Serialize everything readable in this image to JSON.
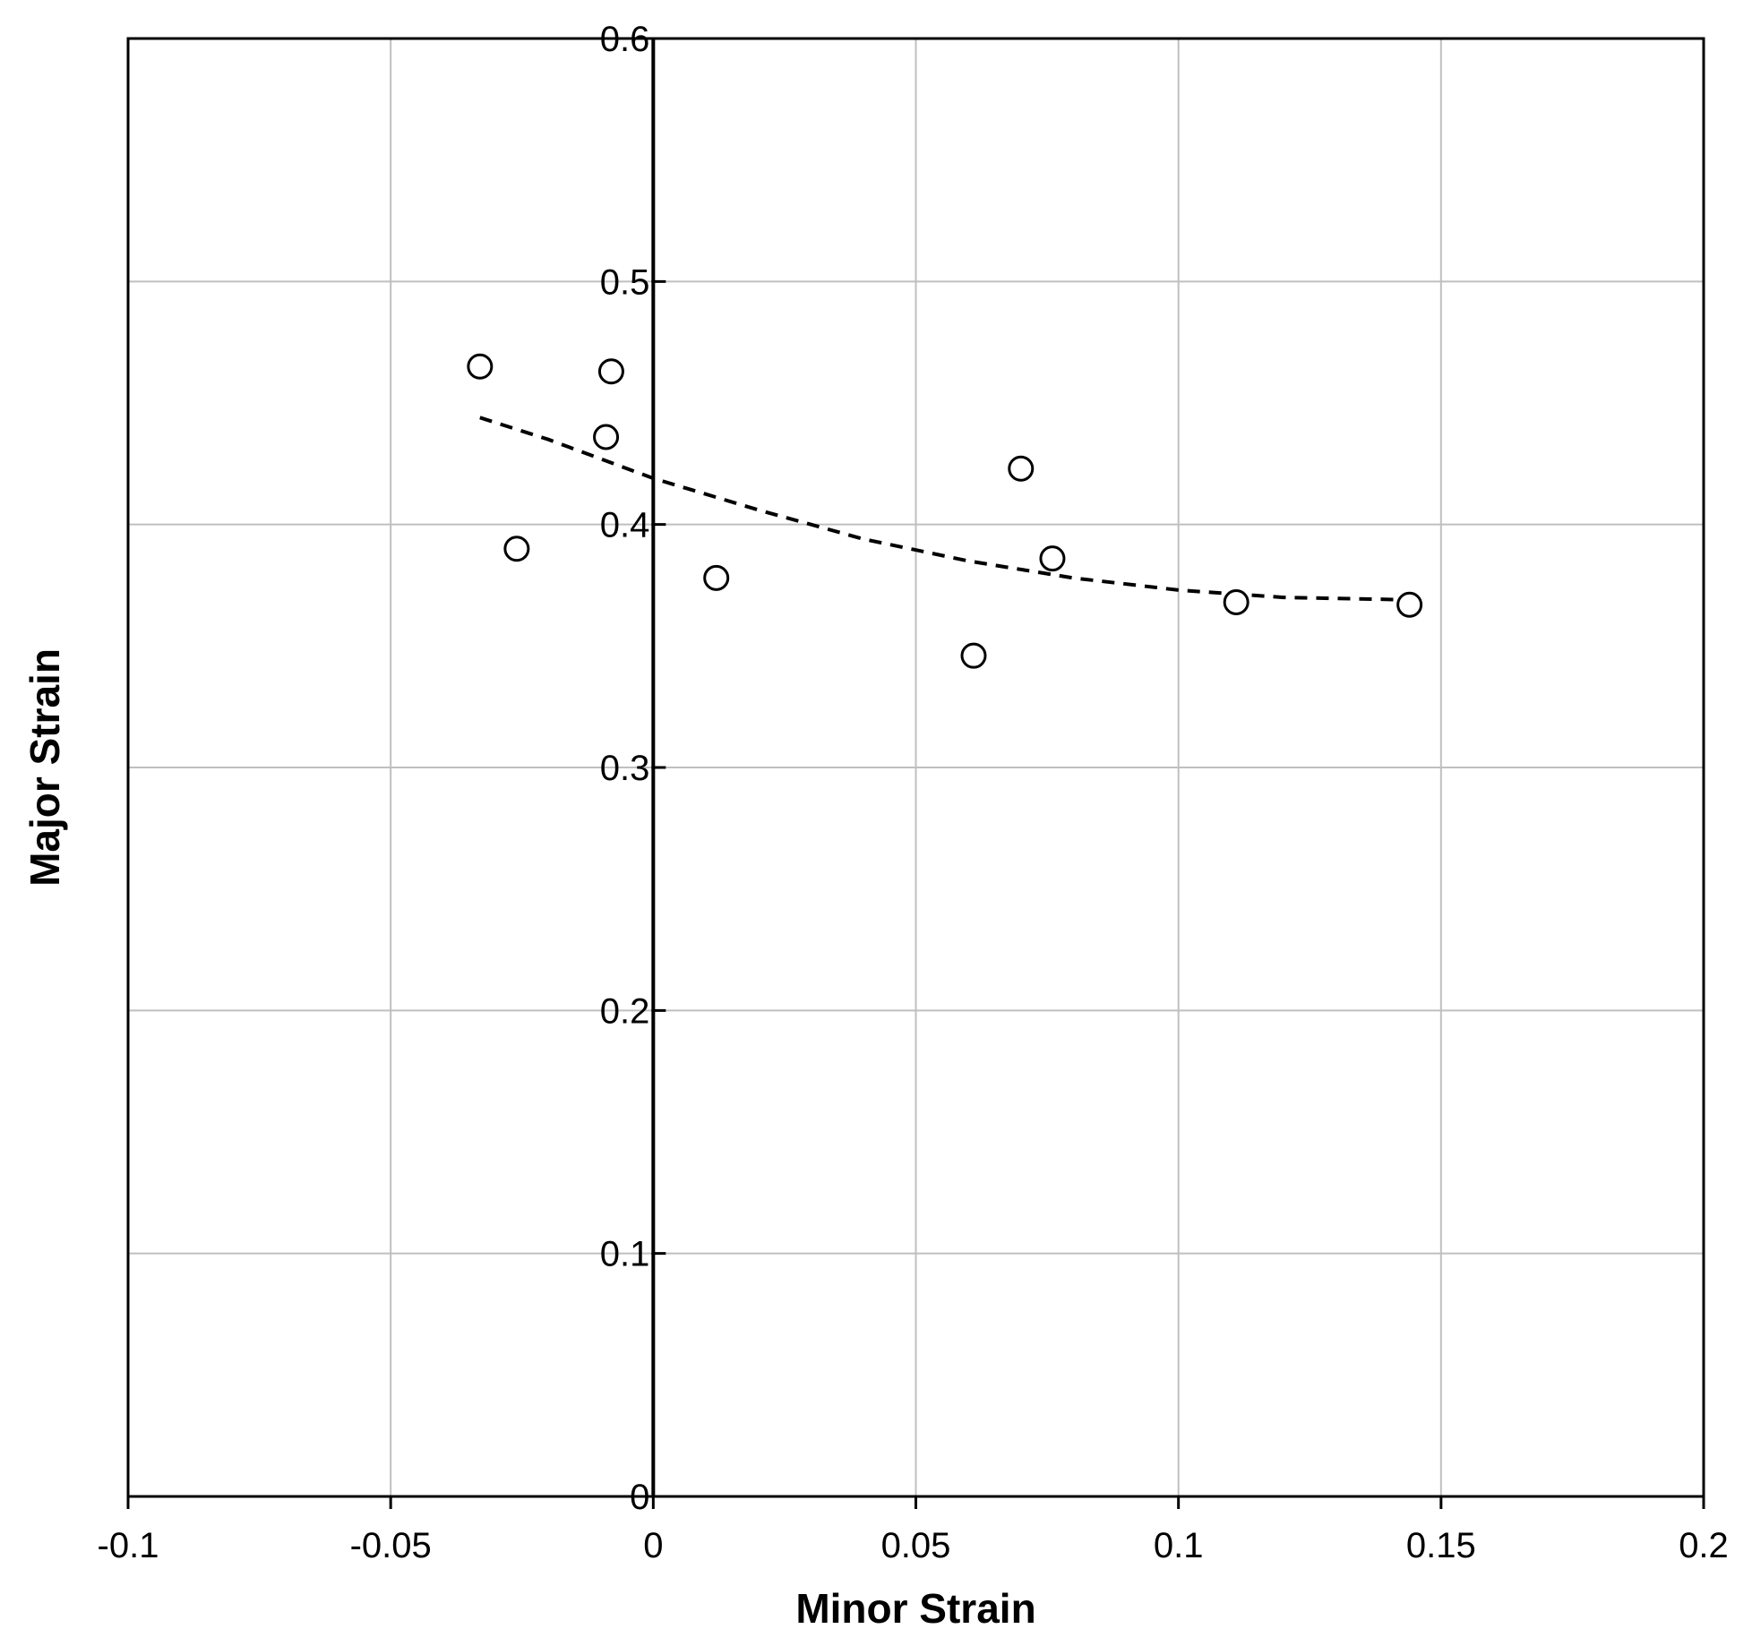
{
  "chart_data": {
    "type": "scatter",
    "title": "",
    "xlabel": "Minor Strain",
    "ylabel": "Major Strain",
    "xlim": [
      -0.1,
      0.2
    ],
    "ylim": [
      0,
      0.6
    ],
    "x_ticks": [
      -0.1,
      -0.05,
      0,
      0.05,
      0.1,
      0.15,
      0.2
    ],
    "x_tick_labels": [
      "-0.1",
      "-0.05",
      "0",
      "0.05",
      "0.1",
      "0.15",
      "0.2"
    ],
    "y_ticks": [
      0,
      0.1,
      0.2,
      0.3,
      0.4,
      0.5,
      0.6
    ],
    "y_tick_labels": [
      "0",
      "0.1",
      "0.2",
      "0.3",
      "0.4",
      "0.5",
      "0.6"
    ],
    "grid": true,
    "legend": "none",
    "series": [
      {
        "type": "scatter",
        "marker": "open-circle",
        "color": "#000000",
        "x": [
          -0.033,
          -0.026,
          -0.009,
          -0.008,
          0.012,
          0.061,
          0.07,
          0.076,
          0.111,
          0.144
        ],
        "y": [
          0.465,
          0.39,
          0.436,
          0.463,
          0.378,
          0.346,
          0.423,
          0.386,
          0.368,
          0.367
        ]
      },
      {
        "type": "line",
        "style": "dashed",
        "color": "#000000",
        "x": [
          -0.033,
          -0.02,
          0.0,
          0.02,
          0.04,
          0.06,
          0.08,
          0.1,
          0.12,
          0.144
        ],
        "y": [
          0.444,
          0.435,
          0.419,
          0.406,
          0.394,
          0.385,
          0.378,
          0.373,
          0.37,
          0.369
        ]
      }
    ]
  },
  "colors": {
    "grid": "#bfbfbf",
    "axis": "#000000",
    "marker_fill": "#ffffff"
  }
}
